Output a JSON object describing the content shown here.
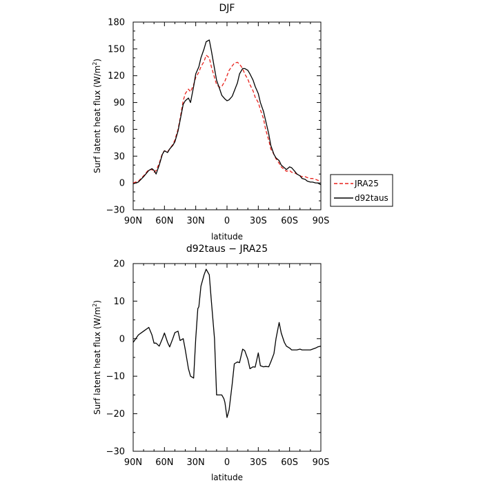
{
  "chart_data": [
    {
      "type": "line",
      "title": "DJF",
      "xlabel": "latitude",
      "ylabel": "Surf latent heat flux (W/m",
      "ylabel_sup": "2",
      "ylabel_end": ")",
      "xlim": [
        90,
        -90
      ],
      "ylim": [
        -30,
        180
      ],
      "xticks": [
        90,
        60,
        30,
        0,
        -30,
        -60,
        -90
      ],
      "xtick_labels": [
        "90N",
        "60N",
        "30N",
        "0",
        "30S",
        "60S",
        "90S"
      ],
      "yticks": [
        -30,
        0,
        30,
        60,
        90,
        120,
        150,
        180
      ],
      "ytick_labels": [
        "−30",
        "0",
        "30",
        "60",
        "90",
        "120",
        "150",
        "180"
      ],
      "legend_position": "right",
      "series": [
        {
          "name": "JRA25",
          "color": "#e8201a",
          "dash": "dashed",
          "x": [
            90,
            85,
            80,
            75,
            72,
            70,
            68,
            65,
            62,
            60,
            57,
            55,
            52,
            50,
            47,
            45,
            42,
            40,
            37,
            35,
            32,
            30,
            27,
            25,
            22,
            20,
            17,
            15,
            12,
            10,
            7,
            5,
            2,
            0,
            -2,
            -5,
            -7,
            -10,
            -12,
            -15,
            -17,
            -20,
            -22,
            -25,
            -27,
            -30,
            -32,
            -35,
            -37,
            -40,
            -42,
            -45,
            -47,
            -50,
            -52,
            -55,
            -57,
            -60,
            -62,
            -65,
            -67,
            -70,
            -72,
            -75,
            -77,
            -80,
            -82,
            -85,
            -87,
            -90
          ],
          "y": [
            0,
            2,
            8,
            15,
            15,
            12,
            14,
            22,
            33,
            36,
            35,
            38,
            43,
            48,
            60,
            72,
            92,
            100,
            105,
            102,
            110,
            118,
            124,
            130,
            136,
            143,
            140,
            130,
            118,
            110,
            107,
            108,
            114,
            120,
            126,
            131,
            134,
            135,
            133,
            128,
            122,
            116,
            110,
            103,
            96,
            90,
            82,
            72,
            60,
            48,
            38,
            32,
            27,
            22,
            18,
            15,
            13,
            14,
            12,
            11,
            10,
            8,
            7,
            7,
            6,
            5,
            5,
            4,
            3,
            2
          ]
        },
        {
          "name": "d92taus",
          "color": "#000000",
          "dash": "solid",
          "x": [
            90,
            85,
            80,
            75,
            72,
            70,
            68,
            65,
            62,
            60,
            57,
            55,
            52,
            50,
            47,
            45,
            42,
            40,
            37,
            35,
            32,
            30,
            27,
            25,
            22,
            20,
            17,
            15,
            12,
            10,
            7,
            5,
            2,
            0,
            -2,
            -5,
            -7,
            -10,
            -12,
            -15,
            -17,
            -20,
            -22,
            -25,
            -27,
            -30,
            -32,
            -35,
            -37,
            -40,
            -42,
            -45,
            -47,
            -50,
            -52,
            -55,
            -57,
            -60,
            -62,
            -65,
            -67,
            -70,
            -72,
            -75,
            -77,
            -80,
            -82,
            -85,
            -87,
            -90
          ],
          "y": [
            -1,
            1,
            7,
            14,
            16,
            14,
            10,
            20,
            32,
            36,
            34,
            38,
            42,
            46,
            58,
            70,
            88,
            92,
            95,
            90,
            108,
            122,
            130,
            140,
            150,
            158,
            160,
            148,
            128,
            115,
            105,
            98,
            94,
            92,
            93,
            97,
            103,
            112,
            122,
            128,
            128,
            126,
            122,
            115,
            108,
            100,
            90,
            80,
            70,
            55,
            42,
            32,
            28,
            25,
            20,
            17,
            15,
            18,
            17,
            13,
            10,
            8,
            5,
            4,
            2,
            1,
            1,
            0,
            0,
            -2
          ]
        }
      ]
    },
    {
      "type": "line",
      "title": "d92taus − JRA25",
      "xlabel": "latitude",
      "ylabel": "Surf latent heat flux (W/m",
      "ylabel_sup": "2",
      "ylabel_end": ")",
      "xlim": [
        90,
        -90
      ],
      "ylim": [
        -30,
        20
      ],
      "xticks": [
        90,
        60,
        30,
        0,
        -30,
        -60,
        -90
      ],
      "xtick_labels": [
        "90N",
        "60N",
        "30N",
        "0",
        "30S",
        "60S",
        "90S"
      ],
      "yticks": [
        -30,
        -20,
        -10,
        0,
        10,
        20
      ],
      "ytick_labels": [
        "−30",
        "−20",
        "−10",
        "0",
        "10",
        "20"
      ],
      "series": [
        {
          "color": "#000000",
          "dash": "solid",
          "x": [
            90,
            85,
            80,
            75,
            72,
            70,
            68,
            65,
            62,
            60,
            57,
            55,
            52,
            50,
            47,
            45,
            42,
            40,
            37,
            35,
            32,
            30,
            28,
            27,
            25,
            22,
            20,
            17,
            15,
            12,
            10,
            7,
            5,
            3,
            2,
            0,
            -2,
            -5,
            -7,
            -10,
            -12,
            -15,
            -17,
            -20,
            -22,
            -25,
            -27,
            -30,
            -32,
            -35,
            -37,
            -40,
            -42,
            -45,
            -47,
            -50,
            -52,
            -55,
            -57,
            -60,
            -62,
            -65,
            -67,
            -70,
            -72,
            -75,
            -77,
            -80,
            -82,
            -85,
            -87,
            -90
          ],
          "y": [
            -1,
            1,
            2,
            3,
            1,
            -1.2,
            -1.2,
            -2,
            0,
            1.5,
            -1,
            -2.2,
            0,
            1.6,
            2,
            -0.5,
            0,
            -3,
            -8,
            -10,
            -10.5,
            0,
            8,
            8.5,
            14,
            17,
            18.5,
            17,
            10,
            0,
            -15,
            -15,
            -15,
            -16,
            -17,
            -21,
            -19,
            -12,
            -6.7,
            -6.2,
            -6.4,
            -2.8,
            -3.2,
            -5.5,
            -8,
            -7.5,
            -7.6,
            -3.8,
            -7.2,
            -7.5,
            -7.4,
            -7.5,
            -6.2,
            -4,
            0,
            4.3,
            1.5,
            -1,
            -2,
            -2.5,
            -3,
            -3,
            -3,
            -2.8,
            -3,
            -3,
            -3,
            -3,
            -2.8,
            -2.5,
            -2.2,
            -2
          ]
        }
      ]
    }
  ]
}
